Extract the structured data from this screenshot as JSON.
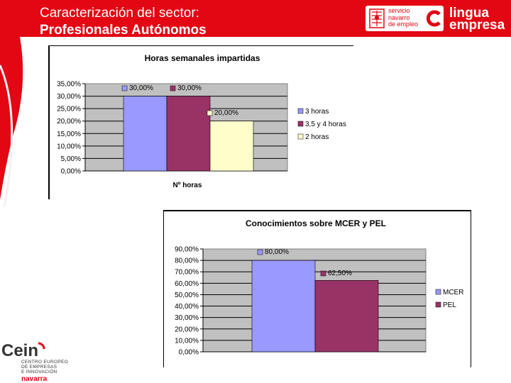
{
  "slide": {
    "title_line1": "Caracterización del sector:",
    "title_line2": "Profesionales  Autónomos"
  },
  "logos": {
    "sne_lines": [
      "servicio",
      "navarro",
      "de empleo"
    ],
    "lingua_line1": "lingua",
    "lingua_line2": "empresa",
    "cein_mark": "Cein",
    "cein_lines": [
      "CENTRO EUROPEO",
      "DE EMPRESAS",
      "E INNOVACIÓN"
    ],
    "cein_region": "navarra"
  },
  "colors": {
    "brand_red": "#e30613",
    "plot_bg": "#c0c0c0",
    "series_blue": "#9999ff",
    "series_maroon": "#993366",
    "series_cream": "#ffffcc"
  },
  "chart_data": [
    {
      "type": "bar",
      "title": "Horas semanales impartidas",
      "xlabel": "Nº horas",
      "ylabel": "",
      "ylim": [
        0,
        35
      ],
      "yticks": [
        "35,00%",
        "30,00%",
        "25,00%",
        "20,00%",
        "15,00%",
        "10,00%",
        "5,00%",
        "0,00%"
      ],
      "legend_position": "right",
      "grid": true,
      "series": [
        {
          "name": "3 horas",
          "value": 30,
          "label": "30,00%",
          "color": "#9999ff"
        },
        {
          "name": "3,5 y 4 horas",
          "value": 30,
          "label": "30,00%",
          "color": "#993366"
        },
        {
          "name": "2 horas",
          "value": 20,
          "label": "20,00%",
          "color": "#ffffcc"
        }
      ]
    },
    {
      "type": "bar",
      "title": "Conocimientos sobre MCER y PEL",
      "xlabel": "",
      "ylabel": "",
      "ylim": [
        0,
        90
      ],
      "yticks": [
        "90,00%",
        "80,00%",
        "70,00%",
        "60,00%",
        "50,00%",
        "40,00%",
        "30,00%",
        "20,00%",
        "10,00%",
        "0,00%"
      ],
      "legend_position": "right",
      "grid": true,
      "series": [
        {
          "name": "MCER",
          "value": 80,
          "label": "80,00%",
          "color": "#9999ff"
        },
        {
          "name": "PEL",
          "value": 62.5,
          "label": "62,50%",
          "color": "#993366"
        }
      ]
    }
  ]
}
